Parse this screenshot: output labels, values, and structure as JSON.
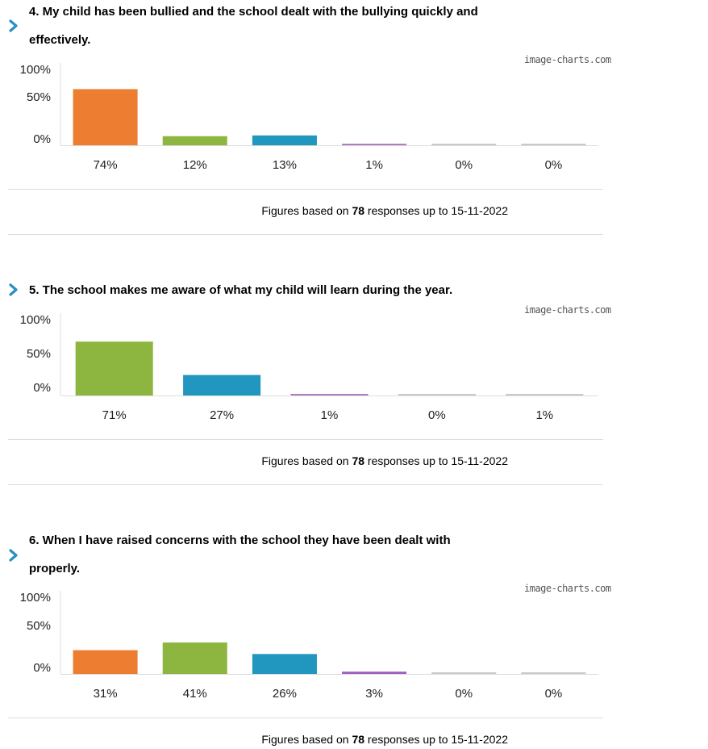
{
  "questions": [
    {
      "title": "4. My child has been bullied and the school dealt with the bullying quickly and effectively.",
      "title_lines": [
        "4. My child has been bullied and the school dealt with the bullying quickly and",
        "effectively."
      ],
      "watermark": "image-charts.com",
      "footer": {
        "prefix": "Figures based on",
        "count": "78",
        "suffix": "responses up to 15-11-2022"
      }
    },
    {
      "title": "5. The school makes me aware of what my child will learn during the year.",
      "title_lines": [
        "5. The school makes me aware of what my child will learn during the year."
      ],
      "watermark": "image-charts.com",
      "footer": {
        "prefix": "Figures based on",
        "count": "78",
        "suffix": "responses up to 15-11-2022"
      }
    },
    {
      "title": "6. When I have raised concerns with the school they have been dealt with properly.",
      "title_lines": [
        "6. When I have raised concerns with the school they have been dealt with",
        "properly."
      ],
      "watermark": "image-charts.com",
      "footer": {
        "prefix": "Figures based on",
        "count": "78",
        "suffix": "responses up to 15-11-2022"
      }
    }
  ],
  "colors": {
    "orange": "#ed7d31",
    "green": "#8db641",
    "blue": "#2196be",
    "purple": "#b07cc6",
    "grey": "#c9c9c9",
    "arrow": "#2a8fc1"
  },
  "chart_data": [
    {
      "type": "bar",
      "yticks": [
        "100%",
        "50%",
        "0%"
      ],
      "ylim": [
        0,
        100
      ],
      "values": [
        74,
        12,
        13,
        1,
        0,
        0
      ],
      "labels": [
        "74%",
        "12%",
        "13%",
        "1%",
        "0%",
        "0%"
      ],
      "colors": [
        "#ed7d31",
        "#8db641",
        "#2196be",
        "#b07cc6",
        "#c9c9c9",
        "#c9c9c9"
      ]
    },
    {
      "type": "bar",
      "yticks": [
        "100%",
        "50%",
        "0%"
      ],
      "ylim": [
        0,
        100
      ],
      "values": [
        71,
        27,
        1,
        0,
        1
      ],
      "labels": [
        "71%",
        "27%",
        "1%",
        "0%",
        "1%"
      ],
      "colors": [
        "#8db641",
        "#2196be",
        "#b07cc6",
        "#c9c9c9",
        "#c9c9c9"
      ]
    },
    {
      "type": "bar",
      "yticks": [
        "100%",
        "50%",
        "0%"
      ],
      "ylim": [
        0,
        100
      ],
      "values": [
        31,
        41,
        26,
        3,
        0,
        0
      ],
      "labels": [
        "31%",
        "41%",
        "26%",
        "3%",
        "0%",
        "0%"
      ],
      "colors": [
        "#ed7d31",
        "#8db641",
        "#2196be",
        "#a25fbf",
        "#c9c9c9",
        "#c9c9c9"
      ]
    }
  ]
}
